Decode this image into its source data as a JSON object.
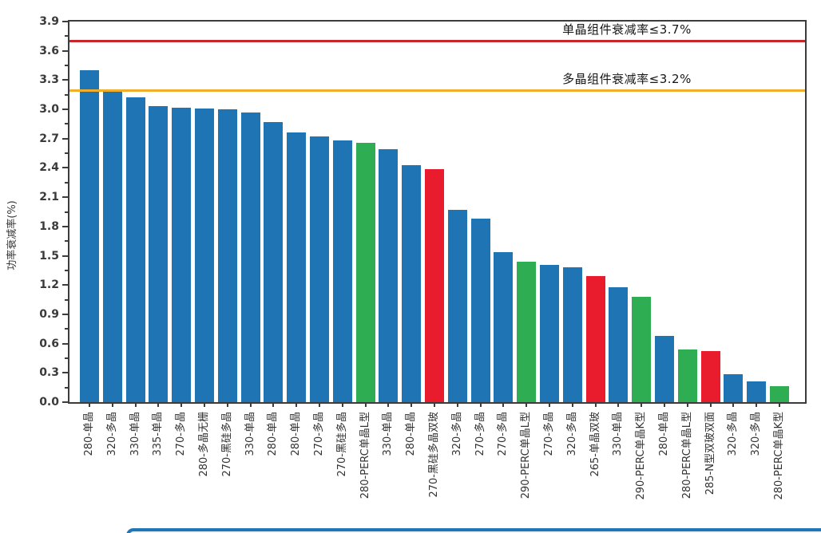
{
  "chart_data": {
    "type": "bar",
    "title": "",
    "ylabel": "功率衰减率(%)",
    "xlabel": "",
    "ylim": [
      0,
      3.9
    ],
    "yticks": [
      "0.0",
      "0.3",
      "0.6",
      "0.9",
      "1.2",
      "1.5",
      "1.8",
      "2.1",
      "2.4",
      "2.7",
      "3.0",
      "3.3",
      "3.6",
      "3.9"
    ],
    "grid": false,
    "legend_position": "none",
    "categories": [
      "280-单晶",
      "320-多晶",
      "330-单晶",
      "335-单晶",
      "270-多晶",
      "280-多晶无栅",
      "270-黑硅多晶",
      "330-单晶",
      "280-单晶",
      "280-单晶",
      "270-多晶",
      "270-黑硅多晶",
      "280-PERC单晶L型",
      "330-单晶",
      "280-单晶",
      "270-黑硅多晶双玻",
      "320-多晶",
      "270-多晶",
      "270-多晶",
      "290-PERC单晶L型",
      "270-多晶",
      "320-多晶",
      "265-单晶双玻",
      "330-单晶",
      "290-PERC单晶K型",
      "280-单晶",
      "280-PERC单晶L型",
      "285-N型双玻双面",
      "320-多晶",
      "320-多晶",
      "280-PERC单晶K型"
    ],
    "values": [
      3.4,
      3.19,
      3.12,
      3.03,
      3.02,
      3.01,
      3.0,
      2.97,
      2.87,
      2.76,
      2.72,
      2.68,
      2.66,
      2.59,
      2.43,
      2.39,
      1.97,
      1.88,
      1.54,
      1.44,
      1.41,
      1.38,
      1.29,
      1.18,
      1.08,
      0.68,
      0.54,
      0.52,
      0.29,
      0.21,
      0.16
    ],
    "bar_colors": [
      "blue",
      "blue",
      "blue",
      "blue",
      "blue",
      "blue",
      "blue",
      "blue",
      "blue",
      "blue",
      "blue",
      "blue",
      "green",
      "blue",
      "blue",
      "red",
      "blue",
      "blue",
      "blue",
      "green",
      "blue",
      "blue",
      "red",
      "blue",
      "green",
      "blue",
      "green",
      "red",
      "blue",
      "blue",
      "green"
    ],
    "color_map": {
      "blue": "#1f74b4",
      "green": "#2ead52",
      "red": "#e81c2c"
    },
    "reference_lines": [
      {
        "label": "单晶组件衰减率≤3.7%",
        "value": 3.7,
        "color": "#c9252b"
      },
      {
        "label": "多晶组件衰减率≤3.2%",
        "value": 3.2,
        "color": "#f0ae2c"
      }
    ]
  },
  "decor": {
    "bottom_panel_border_color": "#2176b5",
    "spine_color": "#3c3c3c"
  }
}
